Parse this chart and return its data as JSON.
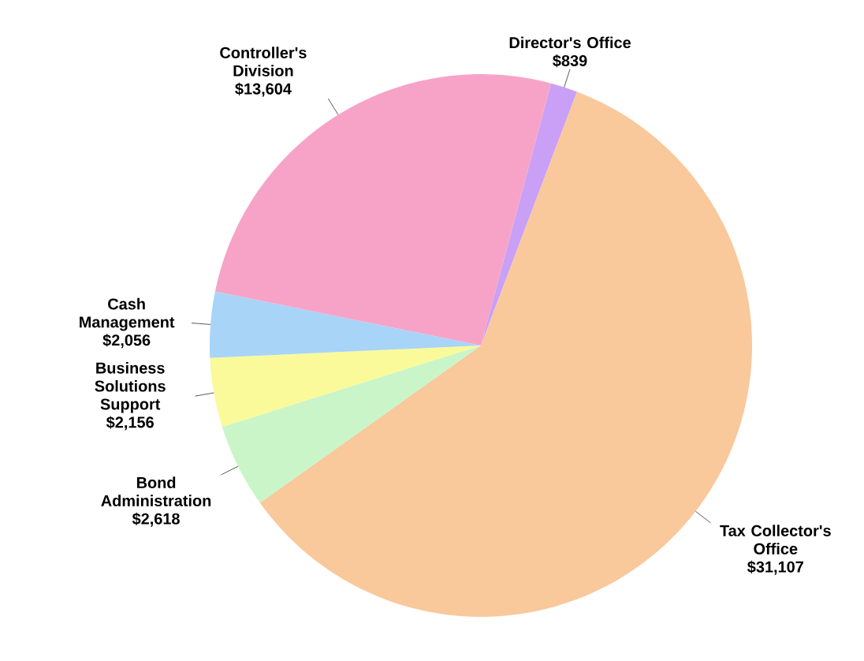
{
  "chart_data": {
    "type": "pie",
    "categories": [
      "Director's Office",
      "Tax Collector's Office",
      "Bond Administration",
      "Business Solutions Support",
      "Cash Management",
      "Controller's Division"
    ],
    "values": [
      839,
      31107,
      2618,
      2156,
      2056,
      13604
    ],
    "value_labels": [
      "$839",
      "$31,107",
      "$2,618",
      "$2,156",
      "$2,056",
      "$13,604"
    ],
    "colors": [
      "#c9a0f5",
      "#f9c89b",
      "#c9f5c9",
      "#fafa9a",
      "#a8d4f8",
      "#f7a3c8"
    ]
  }
}
